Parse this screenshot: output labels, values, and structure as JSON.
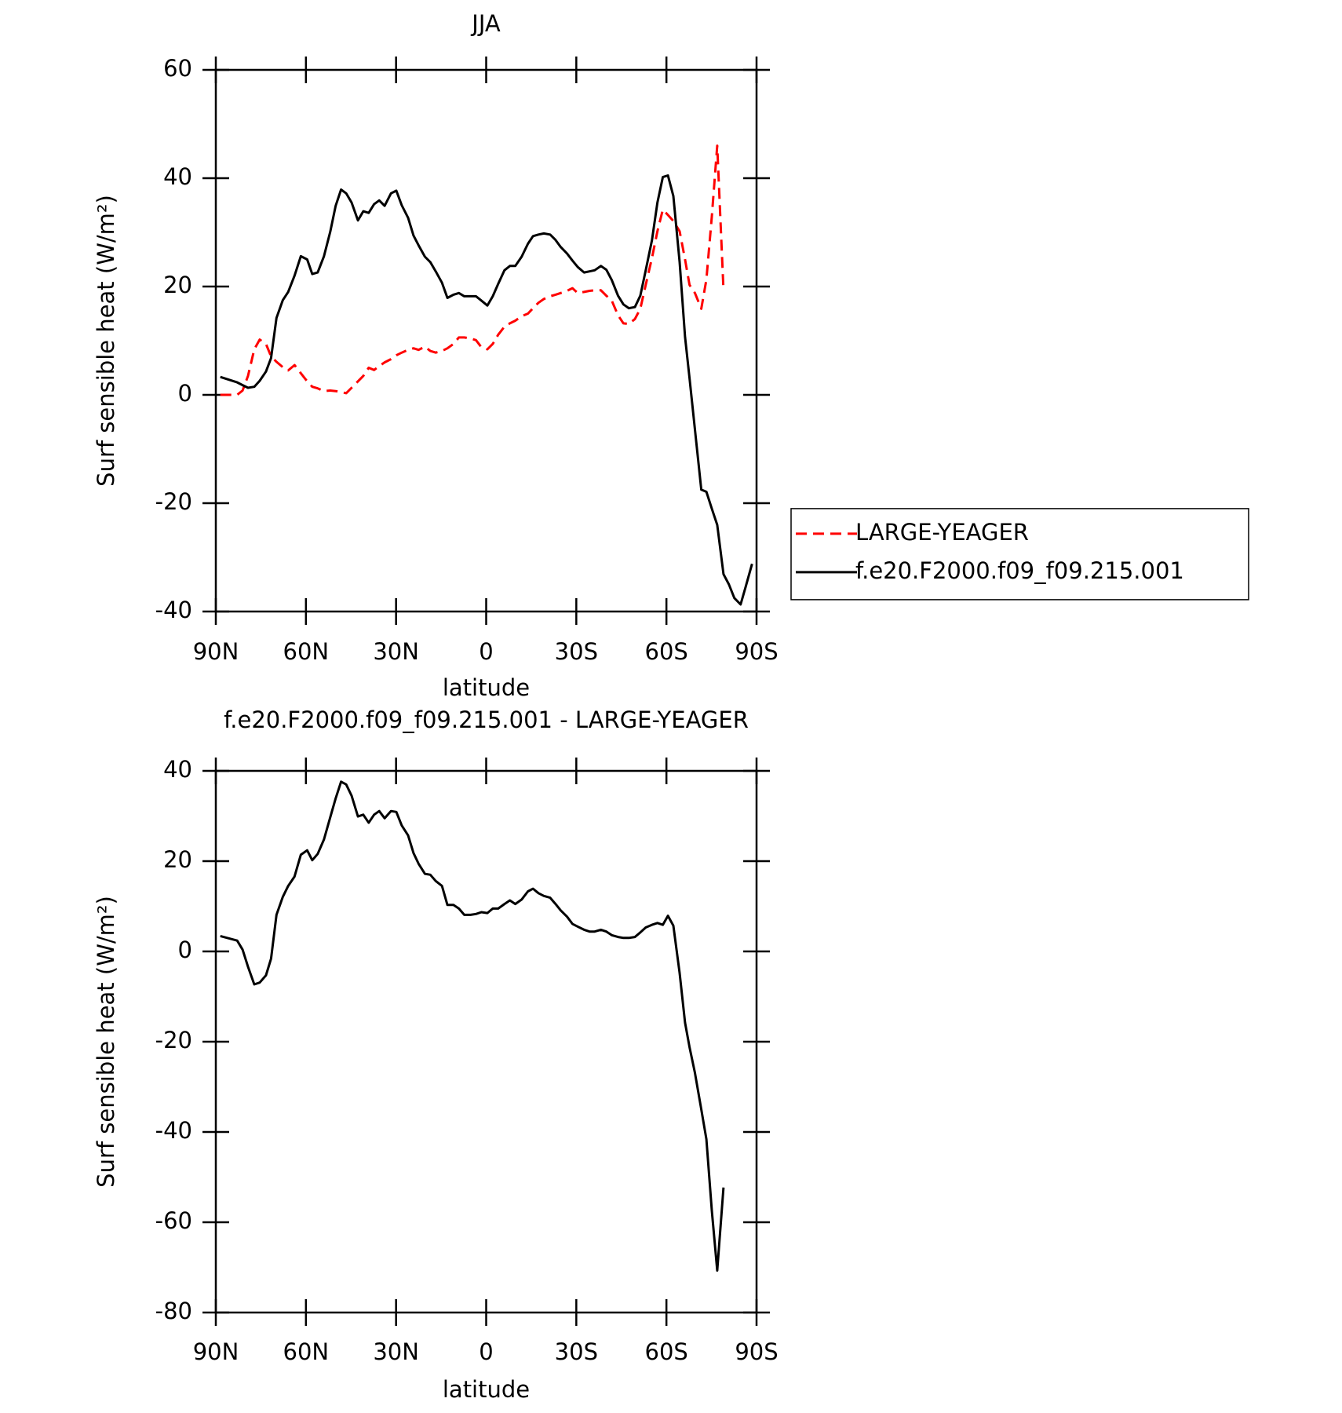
{
  "chart_data": [
    {
      "type": "line",
      "title": "JJA",
      "x_label": "latitude",
      "y_label": "Surf sensible heat (W/m²)",
      "x": [
        88.5,
        82.9,
        81.1,
        79.3,
        77.2,
        75.4,
        73.3,
        71.6,
        69.8,
        67.7,
        65.9,
        63.8,
        61.7,
        59.6,
        57.9,
        56.1,
        54.0,
        51.9,
        50.1,
        48.3,
        46.6,
        44.8,
        42.7,
        40.9,
        39.1,
        37.3,
        35.6,
        33.8,
        31.7,
        29.9,
        28.1,
        26.0,
        24.2,
        22.5,
        20.4,
        18.6,
        16.8,
        14.7,
        12.9,
        10.9,
        9.1,
        7.3,
        5.2,
        3.4,
        1.6,
        -0.4,
        -2.2,
        -4.0,
        -6.1,
        -7.9,
        -9.7,
        -11.8,
        -13.9,
        -15.6,
        -17.4,
        -19.2,
        -21.3,
        -23.1,
        -24.8,
        -26.9,
        -28.7,
        -30.5,
        -32.6,
        -34.4,
        -36.1,
        -38.2,
        -40.0,
        -41.8,
        -43.9,
        -45.7,
        -47.5,
        -49.5,
        -51.3,
        -53.1,
        -55.2,
        -57.0,
        -58.8,
        -60.5,
        -62.3,
        -64.4,
        -66.2,
        -67.7,
        -69.5,
        -71.6,
        -73.3,
        -75.1,
        -76.9,
        -79.0,
        -80.8,
        -82.6,
        -84.7,
        -86.4,
        -88.5
      ],
      "series": [
        {
          "name": "LARGE-YEAGER",
          "color": "#ff0000",
          "dash": true,
          "values": [
            0,
            0,
            0.8,
            3.5,
            8.4,
            10.2,
            9.4,
            7.1,
            6.1,
            5.1,
            4.5,
            5.5,
            4,
            2.5,
            1.5,
            1.2,
            0.7,
            0.8,
            0.7,
            0.5,
            0.3,
            1.3,
            2.5,
            3.5,
            5,
            4.6,
            5.3,
            6,
            6.6,
            7.3,
            7.8,
            8.3,
            8.6,
            8.3,
            8.9,
            8.1,
            7.8,
            8.1,
            8.6,
            9.4,
            10.6,
            10.6,
            10.4,
            10.1,
            8.8,
            8.4,
            9.4,
            11.1,
            12.6,
            13.2,
            13.7,
            14.5,
            15,
            16,
            17,
            17.7,
            18.2,
            18.5,
            18.8,
            19.2,
            19.7,
            18.8,
            19,
            19.2,
            19.3,
            19.3,
            18.3,
            17.4,
            14.7,
            13.2,
            13.1,
            14,
            15.9,
            20.3,
            25.3,
            30.2,
            34.2,
            33.2,
            32.1,
            30.2,
            25,
            20.3,
            18.8,
            15.9,
            21.3,
            32.9,
            46,
            19.3,
            null,
            null,
            null,
            null,
            null
          ]
        },
        {
          "name": "f.e20.F2000.f09_f09.215.001",
          "color": "#000000",
          "dash": false,
          "values": [
            3.3,
            2.3,
            1.8,
            1.3,
            1.5,
            2.6,
            4.3,
            6.8,
            14.2,
            17.5,
            19,
            22,
            25.6,
            25,
            22.3,
            22.6,
            25.6,
            30.1,
            34.9,
            37.9,
            37.2,
            35.5,
            32.2,
            33.9,
            33.6,
            35.2,
            35.9,
            34.9,
            37.2,
            37.7,
            35,
            32.7,
            29.4,
            27.6,
            25.5,
            24.5,
            22.8,
            20.7,
            17.9,
            18.5,
            18.8,
            18.2,
            18.2,
            18.2,
            17.4,
            16.5,
            18.2,
            20.5,
            23,
            23.8,
            23.8,
            25.5,
            27.9,
            29.3,
            29.6,
            29.8,
            29.6,
            28.6,
            27.3,
            26.1,
            24.8,
            23.6,
            22.6,
            22.8,
            23,
            23.8,
            23.1,
            21.2,
            18.3,
            16.7,
            16,
            16.2,
            18.3,
            23,
            28.6,
            35.5,
            40.2,
            40.5,
            36.7,
            24.5,
            10.7,
            3.1,
            -6.4,
            -17.5,
            -17.9,
            -21,
            -24,
            -33.1,
            -35,
            -37.5,
            -38.7,
            -35.4,
            -31.2
          ]
        }
      ],
      "xlim": [
        90,
        -90
      ],
      "xticks": [
        {
          "value": 90,
          "label": "90N"
        },
        {
          "value": 60,
          "label": "60N"
        },
        {
          "value": 30,
          "label": "30N"
        },
        0,
        {
          "value": -30,
          "label": "30S"
        },
        {
          "value": -60,
          "label": "60S"
        },
        {
          "value": -90,
          "label": "90S"
        }
      ],
      "ylim": [
        -40,
        60
      ],
      "yticks": [
        -40,
        -20,
        0,
        20,
        40,
        60
      ],
      "legend": "right"
    },
    {
      "type": "line",
      "title": "f.e20.F2000.f09_f09.215.001 - LARGE-YEAGER",
      "x_label": "latitude",
      "y_label": "Surf sensible heat (W/m²)",
      "x": [
        88.5,
        82.9,
        81.1,
        79.3,
        77.2,
        75.4,
        73.3,
        71.6,
        69.8,
        67.7,
        65.9,
        63.8,
        61.7,
        59.6,
        57.9,
        56.1,
        54.0,
        51.9,
        50.1,
        48.3,
        46.6,
        44.8,
        42.7,
        40.9,
        39.1,
        37.3,
        35.6,
        33.8,
        31.7,
        29.9,
        28.1,
        26.0,
        24.2,
        22.5,
        20.4,
        18.6,
        16.8,
        14.7,
        12.9,
        10.9,
        9.1,
        7.3,
        5.2,
        3.4,
        1.6,
        -0.4,
        -2.2,
        -4.0,
        -6.1,
        -7.9,
        -9.7,
        -11.8,
        -13.9,
        -15.6,
        -17.4,
        -19.2,
        -21.3,
        -23.1,
        -24.8,
        -26.9,
        -28.7,
        -30.5,
        -32.6,
        -34.4,
        -36.1,
        -38.2,
        -40.0,
        -41.8,
        -43.9,
        -45.7,
        -47.5,
        -49.5,
        -51.3,
        -53.1,
        -55.2,
        -57.0,
        -58.8,
        -60.5,
        -62.3,
        -64.4,
        -66.2,
        -67.7,
        -69.5,
        -71.6,
        -73.3,
        -75.1,
        -76.9,
        -79.0,
        -80.8,
        -82.6,
        -84.7,
        -86.4,
        -88.5
      ],
      "series": [
        {
          "color": "#000000",
          "dash": false,
          "values": [
            3.4,
            2.4,
            0.4,
            -3.4,
            -7.3,
            -6.9,
            -5.3,
            -1.6,
            8.1,
            12.1,
            14.5,
            16.6,
            21.4,
            22.4,
            20.2,
            21.6,
            24.8,
            29.7,
            33.9,
            37.6,
            37,
            34.5,
            29.9,
            30.3,
            28.5,
            30.3,
            31.1,
            29.5,
            31.1,
            30.9,
            27.9,
            25.7,
            21.8,
            19.4,
            17.2,
            17,
            15.6,
            14.5,
            10.3,
            10.3,
            9.5,
            8.1,
            8.1,
            8.3,
            8.7,
            8.5,
            9.5,
            9.5,
            10.5,
            11.3,
            10.5,
            11.5,
            13.3,
            13.9,
            12.9,
            12.3,
            11.9,
            10.5,
            9.1,
            7.7,
            6.1,
            5.5,
            4.8,
            4.4,
            4.4,
            4.8,
            4.4,
            3.6,
            3.2,
            3,
            3,
            3.2,
            4.2,
            5.3,
            5.9,
            6.3,
            5.9,
            7.9,
            5.7,
            -4.8,
            -15.8,
            -21.2,
            -26.9,
            -35,
            -41.6,
            -57.4,
            -70.7,
            -52.3,
            null,
            null,
            null,
            null,
            null
          ]
        }
      ],
      "xlim": [
        90,
        -90
      ],
      "xticks": [
        {
          "value": 90,
          "label": "90N"
        },
        {
          "value": 60,
          "label": "60N"
        },
        {
          "value": 30,
          "label": "30N"
        },
        0,
        {
          "value": -30,
          "label": "30S"
        },
        {
          "value": -60,
          "label": "60S"
        },
        {
          "value": -90,
          "label": "90S"
        }
      ],
      "ylim": [
        -80,
        40
      ],
      "yticks": [
        -80,
        -60,
        -40,
        -20,
        0,
        20,
        40
      ]
    }
  ]
}
